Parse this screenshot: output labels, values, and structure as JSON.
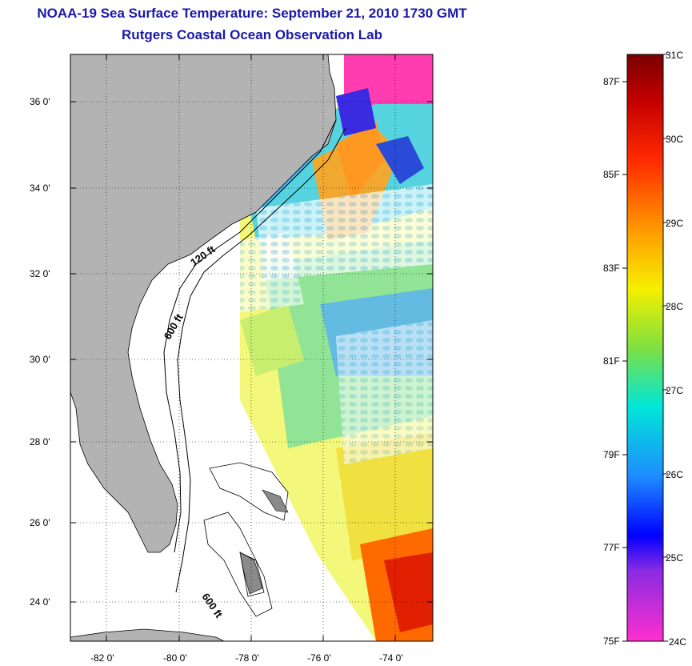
{
  "title": {
    "line1": "NOAA-19 Sea Surface Temperature:  September 21, 2010 1730 GMT",
    "line2": "Rutgers Coastal Ocean Observation Lab"
  },
  "map": {
    "lat_labels": [
      "36 0'",
      "34 0'",
      "32 0'",
      "30 0'",
      "28 0'",
      "26 0'",
      "24 0'"
    ],
    "lon_labels": [
      "-82 0'",
      "-80 0'",
      "-78 0'",
      "-76 0'",
      "-74 0'"
    ],
    "isobaths": [
      "120 ft",
      "600 ft",
      "600 ft"
    ],
    "land_color": "#b3b3b3"
  },
  "colorbar": {
    "celsius": [
      "31C",
      "30C",
      "29C",
      "28C",
      "27C",
      "26C",
      "25C",
      "24C"
    ],
    "fahrenheit": [
      "87F",
      "85F",
      "83F",
      "81F",
      "79F",
      "77F",
      "75F"
    ]
  }
}
